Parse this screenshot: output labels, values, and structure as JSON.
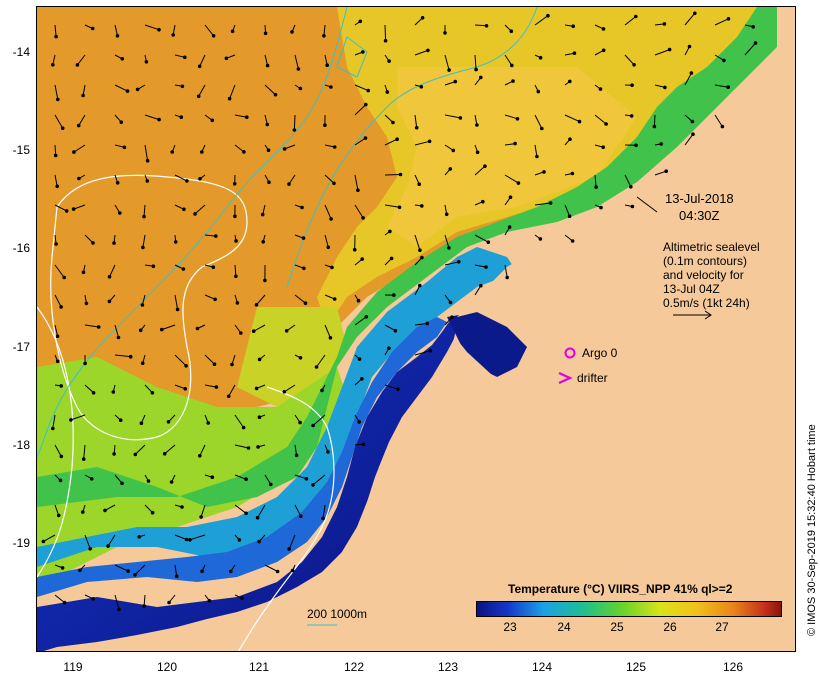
{
  "map": {
    "y_ticks": [
      "-14",
      "-15",
      "-16",
      "-17",
      "-18",
      "-19"
    ],
    "x_ticks": [
      "119",
      "120",
      "121",
      "122",
      "123",
      "124",
      "125",
      "126"
    ],
    "timestamp_date": "13-Jul-2018",
    "timestamp_time": "04:30Z",
    "info_lines": [
      "Altimetric sealevel",
      "(0.1m contours)",
      "and velocity for",
      "13-Jul 04Z",
      "0.5m/s (1kt 24h)"
    ],
    "argo_label": "Argo 0",
    "drifter_label": "drifter",
    "depth_label": "200  1000m",
    "legend_title": "Temperature (°C) VIIRS_NPP 41% ql>=2",
    "colorbar_ticks": [
      "23",
      "24",
      "25",
      "26",
      "27"
    ],
    "credit": "© IMOS 30-Sep-2019 15:32:40 Hobart time"
  },
  "colors": {
    "land": "#f6c99a",
    "warm": "#e8941f",
    "cold": "#0b1280",
    "contour": "#ffffff",
    "isobath": "#3cc0c8",
    "argo": "#e000e0"
  }
}
